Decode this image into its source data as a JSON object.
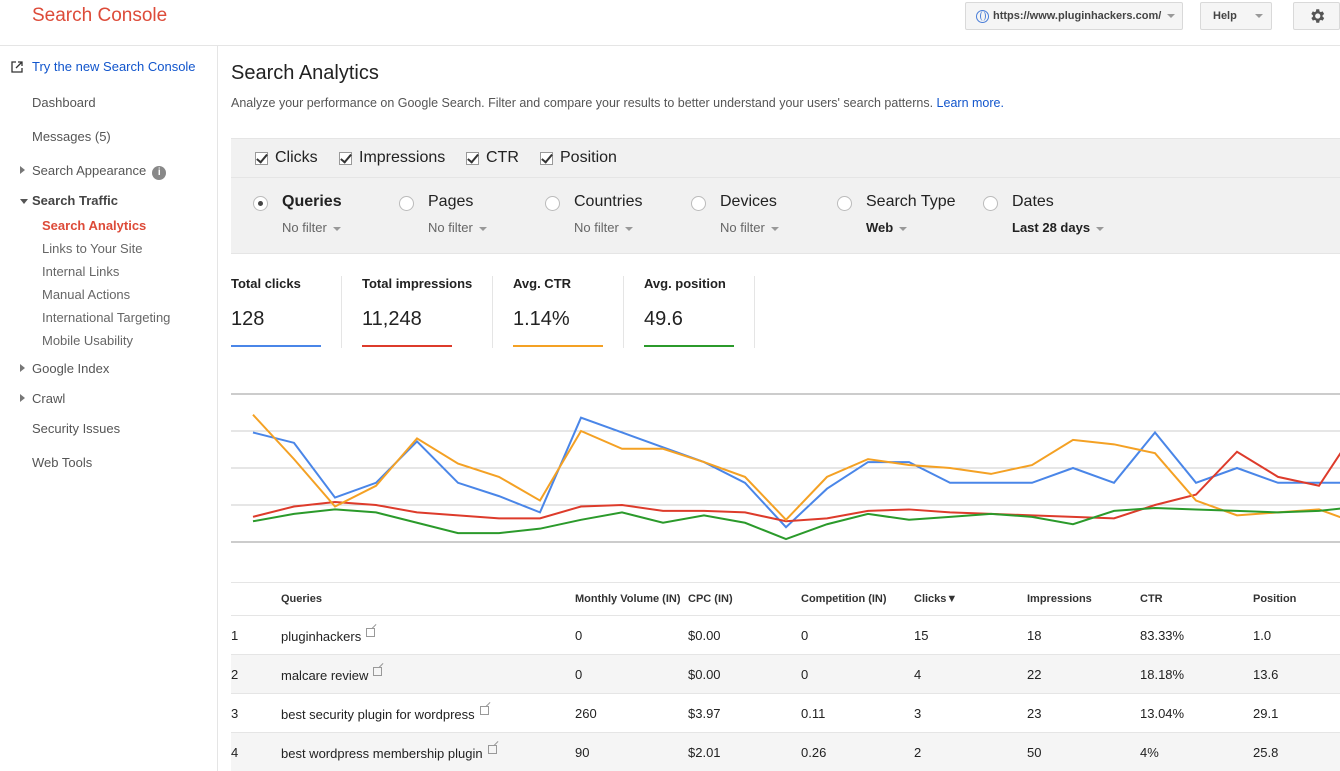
{
  "app": {
    "title": "Search Console"
  },
  "header": {
    "site": "https://www.pluginhackers.com/",
    "help_label": "Help"
  },
  "sidebar": {
    "try_new": "Try the new Search Console",
    "items": [
      {
        "label": "Dashboard"
      },
      {
        "label": "Messages (5)"
      },
      {
        "label": "Search Appearance"
      },
      {
        "label": "Search Traffic"
      },
      {
        "label": "Google Index"
      },
      {
        "label": "Crawl"
      },
      {
        "label": "Security Issues"
      },
      {
        "label": "Web Tools"
      }
    ],
    "search_traffic_children": [
      {
        "label": "Search Analytics"
      },
      {
        "label": "Links to Your Site"
      },
      {
        "label": "Internal Links"
      },
      {
        "label": "Manual Actions"
      },
      {
        "label": "International Targeting"
      },
      {
        "label": "Mobile Usability"
      }
    ]
  },
  "main": {
    "title": "Search Analytics",
    "description": "Analyze your performance on Google Search. Filter and compare your results to better understand your users' search patterns.",
    "learn_more": "Learn more.",
    "metrics": [
      {
        "label": "Clicks",
        "checked": true
      },
      {
        "label": "Impressions",
        "checked": true
      },
      {
        "label": "CTR",
        "checked": true
      },
      {
        "label": "Position",
        "checked": true
      }
    ],
    "dimensions": [
      {
        "label": "Queries",
        "filter": "No filter",
        "selected": true
      },
      {
        "label": "Pages",
        "filter": "No filter",
        "selected": false
      },
      {
        "label": "Countries",
        "filter": "No filter",
        "selected": false
      },
      {
        "label": "Devices",
        "filter": "No filter",
        "selected": false
      },
      {
        "label": "Search Type",
        "filter": "Web",
        "selected": false
      },
      {
        "label": "Dates",
        "filter": "Last 28 days",
        "selected": false
      }
    ],
    "totals": [
      {
        "label": "Total clicks",
        "value": "128",
        "color": "#4a86e8"
      },
      {
        "label": "Total impressions",
        "value": "11,248",
        "color": "#dd3b2b"
      },
      {
        "label": "Avg. CTR",
        "value": "1.14%",
        "color": "#f4a124"
      },
      {
        "label": "Avg. position",
        "value": "49.6",
        "color": "#2b9a2b"
      }
    ]
  },
  "chart_data": {
    "type": "line",
    "grid": true,
    "ylim": [
      0,
      100
    ],
    "x": [
      1,
      2,
      3,
      4,
      5,
      6,
      7,
      8,
      9,
      10,
      11,
      12,
      13,
      14,
      15,
      16,
      17,
      18,
      19,
      20,
      21,
      22,
      23,
      24,
      25,
      26,
      27,
      28
    ],
    "series": [
      {
        "color": "#4a86e8",
        "values": [
          74,
          67,
          30,
          40,
          68,
          40,
          31,
          20,
          84,
          74,
          64,
          54,
          40,
          10,
          36,
          54,
          54,
          40,
          40,
          40,
          50,
          40,
          74,
          40,
          50,
          40,
          40,
          40
        ]
      },
      {
        "color": "#dd3b2b",
        "values": [
          17,
          24,
          27,
          25,
          20,
          18,
          16,
          16,
          24,
          25,
          21,
          21,
          20,
          14,
          16,
          21,
          22,
          20,
          19,
          18,
          17,
          16,
          25,
          32,
          61,
          44,
          38,
          80
        ]
      },
      {
        "color": "#f4a124",
        "values": [
          86,
          56,
          24,
          38,
          70,
          53,
          44,
          28,
          75,
          63,
          63,
          54,
          44,
          15,
          44,
          56,
          52,
          50,
          46,
          52,
          69,
          66,
          60,
          28,
          18,
          20,
          22,
          12
        ]
      },
      {
        "color": "#2b9a2b",
        "values": [
          14,
          19,
          22,
          20,
          13,
          6,
          6,
          9,
          15,
          20,
          13,
          18,
          13,
          2,
          12,
          19,
          15,
          17,
          19,
          17,
          12,
          21,
          23,
          22,
          21,
          20,
          21,
          24
        ]
      }
    ]
  },
  "table": {
    "columns": [
      "Queries",
      "Monthly Volume (IN)",
      "CPC (IN)",
      "Competition (IN)",
      "Clicks▼",
      "Impressions",
      "CTR",
      "Position"
    ],
    "rows": [
      {
        "num": "1",
        "query": "pluginhackers",
        "volume": "0",
        "cpc": "$0.00",
        "competition": "0",
        "clicks": "15",
        "impressions": "18",
        "ctr": "83.33%",
        "position": "1.0"
      },
      {
        "num": "2",
        "query": "malcare review",
        "volume": "0",
        "cpc": "$0.00",
        "competition": "0",
        "clicks": "4",
        "impressions": "22",
        "ctr": "18.18%",
        "position": "13.6"
      },
      {
        "num": "3",
        "query": "best security plugin for wordpress",
        "volume": "260",
        "cpc": "$3.97",
        "competition": "0.11",
        "clicks": "3",
        "impressions": "23",
        "ctr": "13.04%",
        "position": "29.1"
      },
      {
        "num": "4",
        "query": "best wordpress membership plugin",
        "volume": "90",
        "cpc": "$2.01",
        "competition": "0.26",
        "clicks": "2",
        "impressions": "50",
        "ctr": "4%",
        "position": "25.8"
      }
    ]
  }
}
